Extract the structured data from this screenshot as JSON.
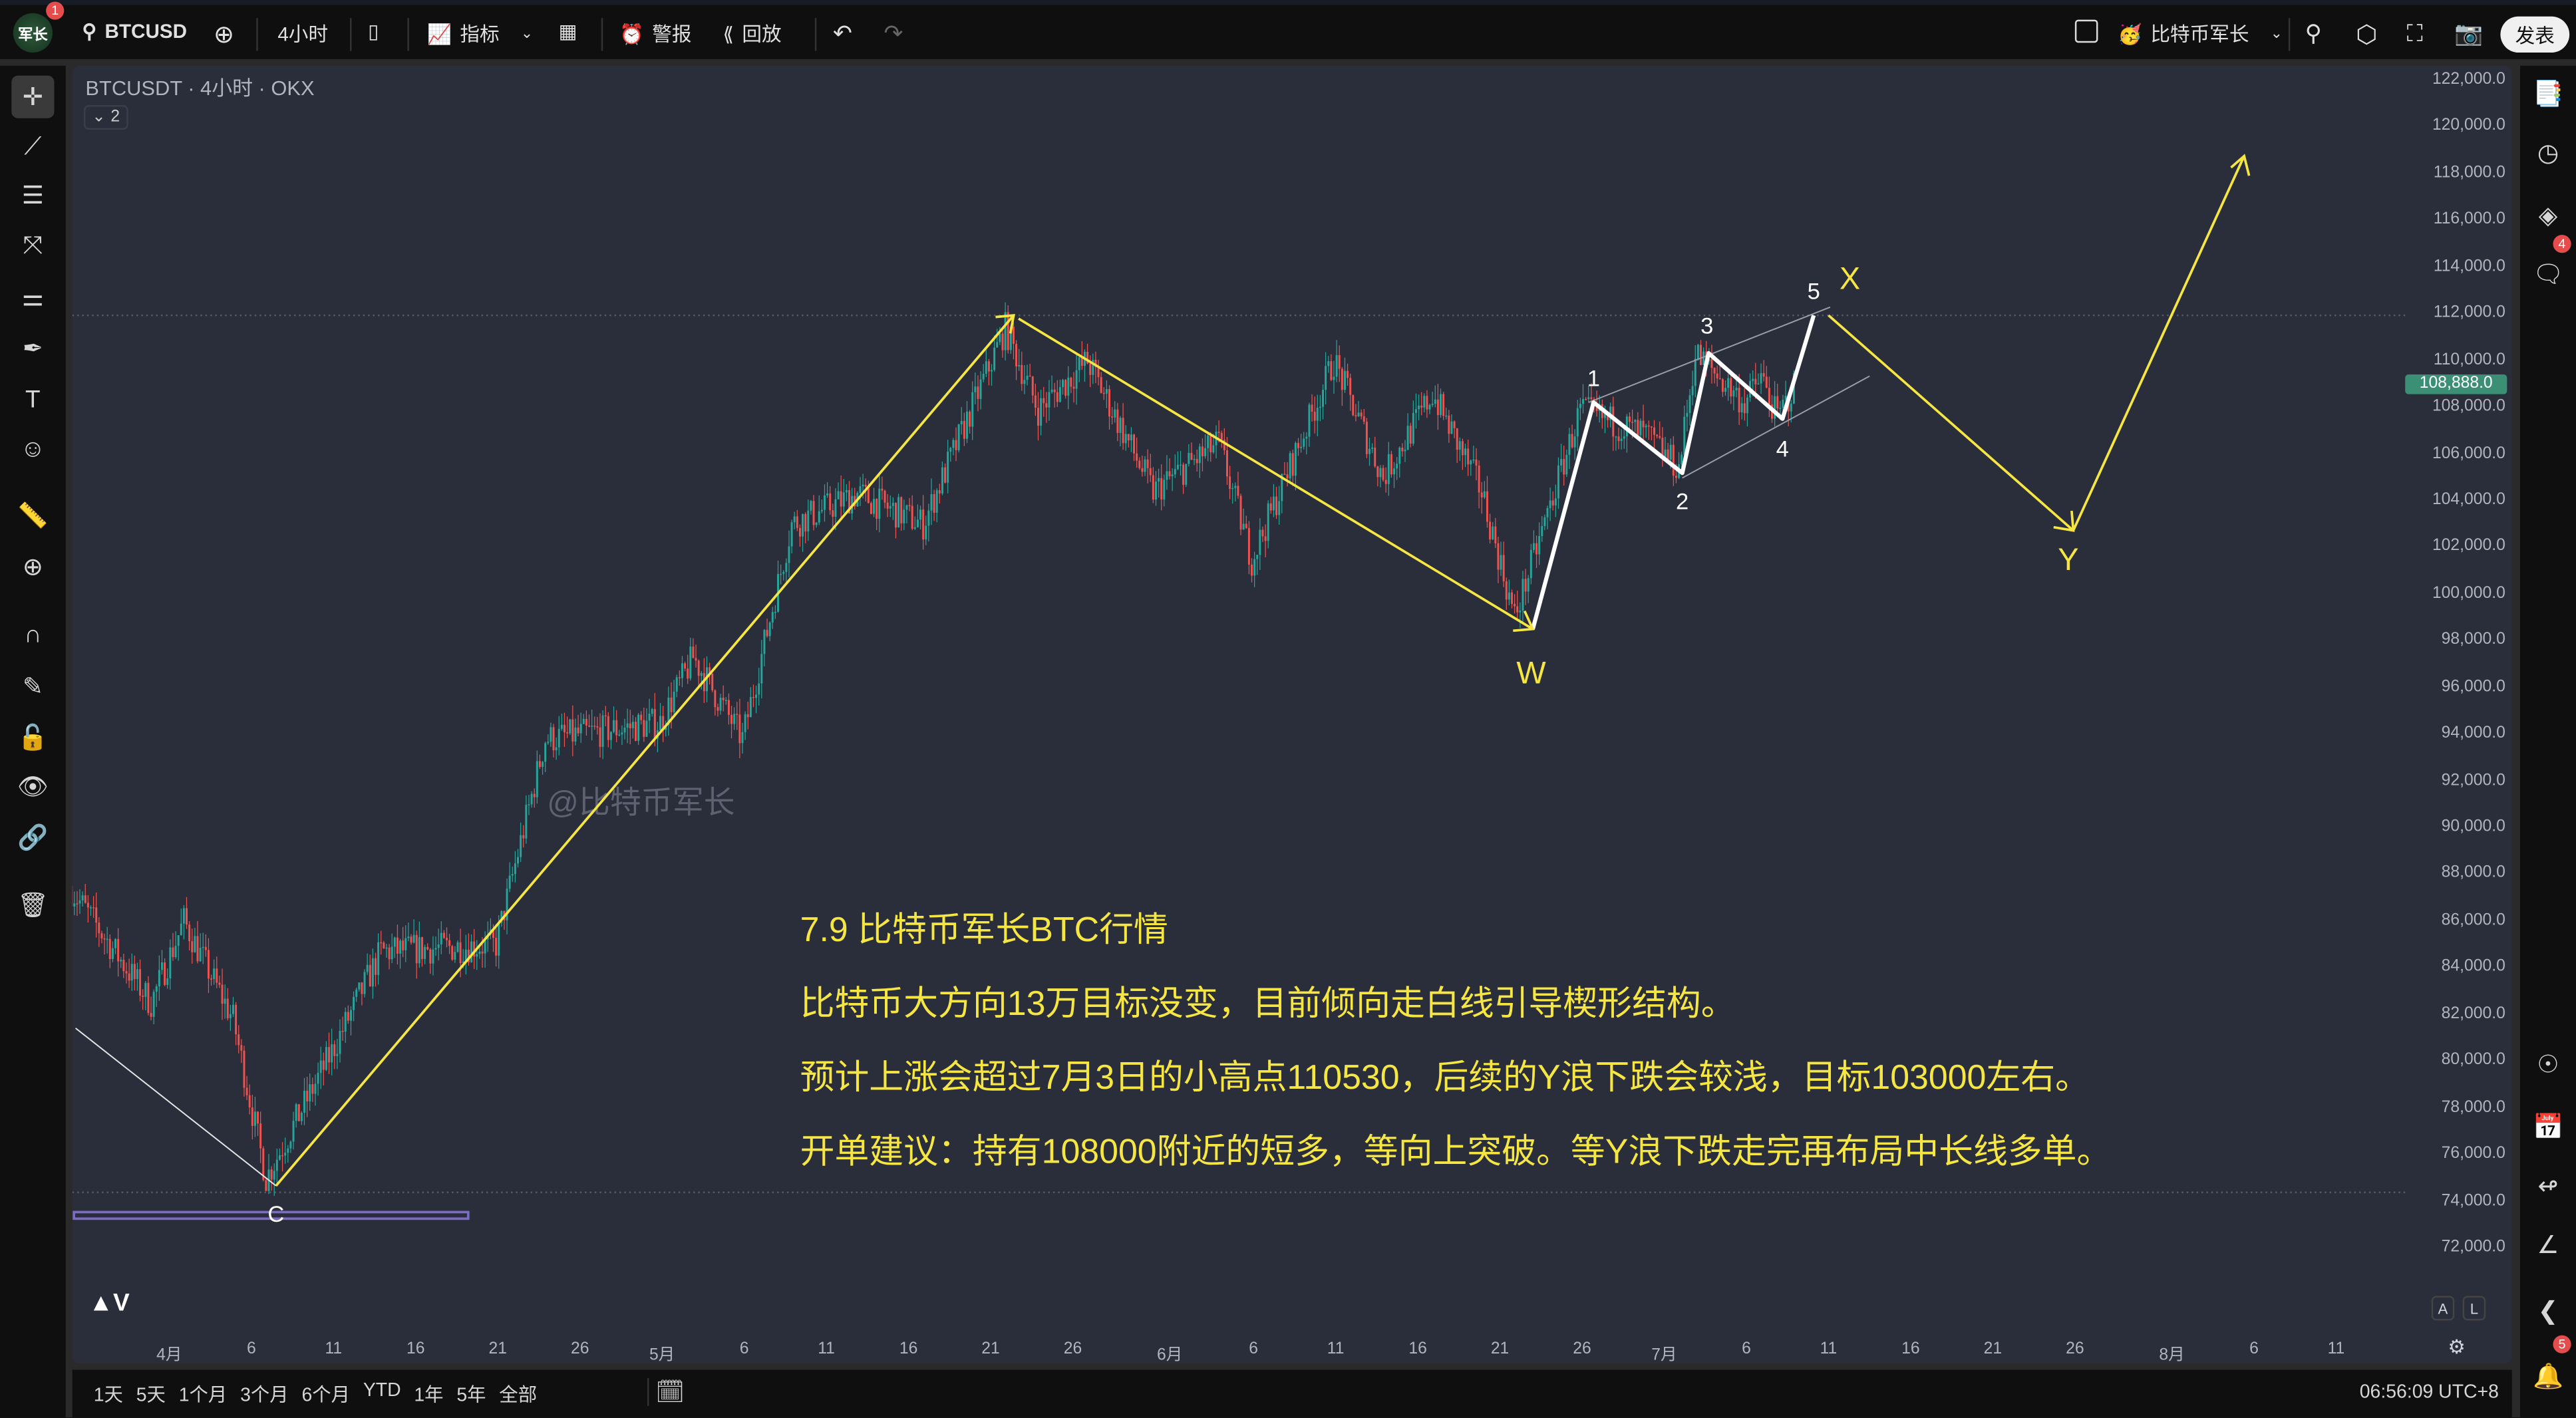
{
  "topbar": {
    "avatar_text": "军长",
    "avatar_badge": "1",
    "symbol": "BTCUSD",
    "interval": "4小时",
    "indicators": "指标",
    "alert": "警报",
    "replay": "回放",
    "profile_name": "比特币军长",
    "publish": "发表"
  },
  "chart": {
    "legend": "BTCUSDT · 4小时 · OKX",
    "collapse_count": "2",
    "watermark": "@比特币军长",
    "last_price": "108,888.0",
    "colors": {
      "up": "#26a69a",
      "down": "#ef5350",
      "annotation": "#f5e643",
      "wave": "#ffffff",
      "last_price_bg": "#3a8f74"
    },
    "price_ticks": [
      "122,000.0",
      "120,000.0",
      "118,000.0",
      "116,000.0",
      "114,000.0",
      "112,000.0",
      "110,000.0",
      "108,000.0",
      "106,000.0",
      "104,000.0",
      "102,000.0",
      "100,000.0",
      "98,000.0",
      "96,000.0",
      "94,000.0",
      "92,000.0",
      "90,000.0",
      "88,000.0",
      "86,000.0",
      "84,000.0",
      "82,000.0",
      "80,000.0",
      "78,000.0",
      "76,000.0",
      "74,000.0",
      "72,000.0"
    ],
    "time_ticks": [
      "4月",
      "6",
      "11",
      "16",
      "21",
      "26",
      "5月",
      "6",
      "11",
      "16",
      "21",
      "26",
      "6月",
      "6",
      "11",
      "16",
      "21",
      "26",
      "7月",
      "6",
      "11",
      "16",
      "21",
      "26",
      "8月",
      "6",
      "11"
    ],
    "wave_labels": {
      "w": "W",
      "x": "X",
      "y": "Y",
      "c": "C",
      "n1": "1",
      "n2": "2",
      "n3": "3",
      "n4": "4",
      "n5": "5"
    },
    "notes": [
      "7.9 比特币军长BTC行情",
      "比特币大方向13万目标没变，目前倾向走白线引导楔形结构。",
      "预计上涨会超过7月3日的小高点110530，后续的Y浪下跌会较浅，目标103000左右。",
      "开单建议：持有108000附近的短多，等向上突破。等Y浪下跌走完再布局中长线多单。"
    ],
    "scale_buttons": {
      "auto": "A",
      "log": "L"
    }
  },
  "chart_data": {
    "type": "candlestick",
    "interval": "4小时",
    "ylim": [
      71000,
      123000
    ],
    "price_path": [
      {
        "date": "03-26",
        "price": 87500
      },
      {
        "date": "03-31",
        "price": 82500
      },
      {
        "date": "04-02",
        "price": 86000
      },
      {
        "date": "04-05",
        "price": 81800
      },
      {
        "date": "04-07",
        "price": 75000
      },
      {
        "date": "04-11",
        "price": 80400
      },
      {
        "date": "04-14",
        "price": 84700
      },
      {
        "date": "04-21",
        "price": 85000
      },
      {
        "date": "04-24",
        "price": 93800
      },
      {
        "date": "05-01",
        "price": 94500
      },
      {
        "date": "05-03",
        "price": 97300
      },
      {
        "date": "05-06",
        "price": 93800
      },
      {
        "date": "05-09",
        "price": 103000
      },
      {
        "date": "05-13",
        "price": 104300
      },
      {
        "date": "05-17",
        "price": 103000
      },
      {
        "date": "05-22",
        "price": 111400
      },
      {
        "date": "05-24",
        "price": 107900
      },
      {
        "date": "05-27",
        "price": 110000
      },
      {
        "date": "05-31",
        "price": 104400
      },
      {
        "date": "06-04",
        "price": 106500
      },
      {
        "date": "06-06",
        "price": 101500
      },
      {
        "date": "06-11",
        "price": 110000
      },
      {
        "date": "06-14",
        "price": 105000
      },
      {
        "date": "06-17",
        "price": 108600
      },
      {
        "date": "06-20",
        "price": 104400
      },
      {
        "date": "06-22",
        "price": 99000
      },
      {
        "date": "06-26",
        "price": 107900
      },
      {
        "date": "06-30",
        "price": 106800
      },
      {
        "date": "07-02",
        "price": 105400
      },
      {
        "date": "07-03",
        "price": 110300
      },
      {
        "date": "07-06",
        "price": 108200
      },
      {
        "date": "07-07",
        "price": 109300
      },
      {
        "date": "07-08",
        "price": 107500
      },
      {
        "date": "07-09",
        "price": 108888
      }
    ]
  },
  "rightbar": {
    "chat_badge": "4",
    "notif_badge": "5"
  },
  "bottombar": {
    "ranges": [
      "1天",
      "5天",
      "1个月",
      "3个月",
      "6个月",
      "YTD",
      "1年",
      "5年",
      "全部"
    ],
    "clock": "06:56:09 UTC+8"
  }
}
